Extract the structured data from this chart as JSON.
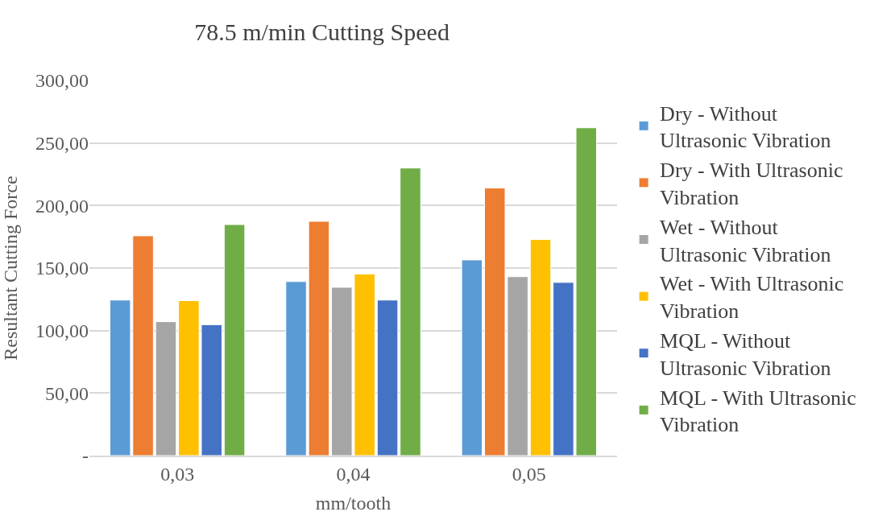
{
  "chart_data": {
    "type": "bar",
    "title": "78.5 m/min Cutting Speed",
    "xlabel": "mm/tooth",
    "ylabel": "Resultant Cutting Force",
    "categories": [
      "0,03",
      "0,04",
      "0,05"
    ],
    "series": [
      {
        "name": "Dry - Without Ultrasonic Vibration",
        "color": "#5b9bd5",
        "values": [
          124.4,
          139.2,
          156.5
        ]
      },
      {
        "name": "Dry - With Ultrasonic Vibration",
        "color": "#ed7d31",
        "values": [
          175.8,
          187.4,
          214.0
        ]
      },
      {
        "name": "Wet - Without Ultrasonic Vibration",
        "color": "#a5a5a5",
        "values": [
          107.1,
          134.6,
          143.1
        ]
      },
      {
        "name": "Wet - With Ultrasonic Vibration",
        "color": "#ffc000",
        "values": [
          123.9,
          145.3,
          172.8
        ]
      },
      {
        "name": "MQL - Without Ultrasonic Vibration",
        "color": "#4472c4",
        "values": [
          104.7,
          124.4,
          138.5
        ]
      },
      {
        "name": "MQL - With Ultrasonic Vibration",
        "color": "#70ad47",
        "values": [
          184.8,
          230.0,
          262.2
        ]
      }
    ],
    "ylim": [
      0,
      300
    ],
    "yticks": [
      {
        "value": 0,
        "label": "-"
      },
      {
        "value": 50,
        "label": "50,00"
      },
      {
        "value": 100,
        "label": "100,00"
      },
      {
        "value": 150,
        "label": "150,00"
      },
      {
        "value": 200,
        "label": "200,00"
      },
      {
        "value": 250,
        "label": "250,00"
      },
      {
        "value": 300,
        "label": "300,00"
      }
    ],
    "grid": "y",
    "legend": "right"
  }
}
